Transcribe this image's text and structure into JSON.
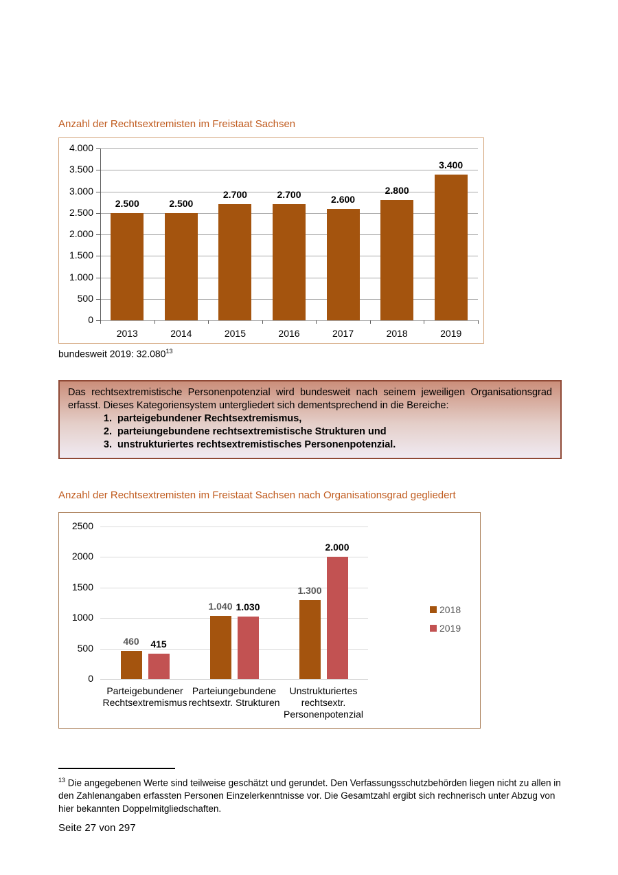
{
  "chart_data": [
    {
      "id": "rechtsextremisten-sachsen-gesamt",
      "type": "bar",
      "title": "Anzahl der Rechtsextremisten im Freistaat Sachsen",
      "categories": [
        "2013",
        "2014",
        "2015",
        "2016",
        "2017",
        "2018",
        "2019"
      ],
      "values": [
        2500,
        2500,
        2700,
        2700,
        2600,
        2800,
        3400
      ],
      "value_labels": [
        "2.500",
        "2.500",
        "2.700",
        "2.700",
        "2.600",
        "2.800",
        "3.400"
      ],
      "ylim": [
        0,
        4000
      ],
      "ytick_step": 500,
      "ytick_labels": [
        "0",
        "500",
        "1.000",
        "1.500",
        "2.000",
        "2.500",
        "3.000",
        "3.500",
        "4.000"
      ],
      "grid": true,
      "legend_position": "none",
      "bar_color": "#A4540E"
    },
    {
      "id": "rechtsextremisten-sachsen-organisationsgrad",
      "type": "bar",
      "title": "Anzahl der Rechtsextremisten im Freistaat Sachsen nach Organisationsgrad gegliedert",
      "categories": [
        "Parteigebundener\nRechtsextremismus",
        "Parteiungebundene\nrechtsextr. Strukturen",
        "Unstrukturiertes\nrechtsextr.\nPersonenpotenzial"
      ],
      "series": [
        {
          "name": "2018",
          "values": [
            460,
            1040,
            1300
          ],
          "value_labels": [
            "460",
            "1.040",
            "1.300"
          ],
          "color": "#A4540E",
          "label_color": "#595959"
        },
        {
          "name": "2019",
          "values": [
            415,
            1030,
            2000
          ],
          "value_labels": [
            "415",
            "1.030",
            "2.000"
          ],
          "color": "#C25252",
          "label_color": "#000000"
        }
      ],
      "ylim": [
        0,
        2500
      ],
      "ytick_step": 500,
      "ytick_labels": [
        "0",
        "500",
        "1000",
        "1500",
        "2000",
        "2500"
      ],
      "grid": true,
      "legend_position": "right"
    }
  ],
  "chart1_note": {
    "text": "bundesweit 2019: 32.080",
    "superscript": "13"
  },
  "info_box": {
    "paragraph": "Das rechtsextremistische Personenpotenzial wird bundesweit nach seinem jeweiligen Organisationsgrad erfasst. Dieses Kategoriensystem untergliedert sich dementsprechend in die Bereiche:",
    "items": [
      "parteigebundener Rechtsextremismus,",
      "parteiungebundene rechtsextremistische Strukturen und",
      "unstrukturiertes rechtsextremistisches Personenpotenzial."
    ]
  },
  "footnote": {
    "marker": "13",
    "text": "Die angegebenen Werte sind teilweise geschätzt und gerundet. Den Verfassungsschutzbehörden liegen nicht zu allen in den Zahlenangaben erfassten Personen Einzelerkenntnisse vor. Die Gesamtzahl ergibt sich rechnerisch unter Abzug von hier bekannten Doppelmitgliedschaften."
  },
  "footer": {
    "page_label": "Seite 27 von 297"
  },
  "colors": {
    "heading": "#C05B1E",
    "bar_2018_brown": "#A4540E",
    "bar_2019_red": "#C25252",
    "chart1_border": "#D2A278",
    "chart2_border": "#A97C55",
    "box_border": "#8F4936",
    "box_gradient_top": "#CB8E7A",
    "box_gradient_bottom": "#F0EAF2",
    "grid_dark": "#A6A6A6",
    "grid_light": "#D9D9D9",
    "axis": "#595959",
    "legend_text": "#595959"
  }
}
